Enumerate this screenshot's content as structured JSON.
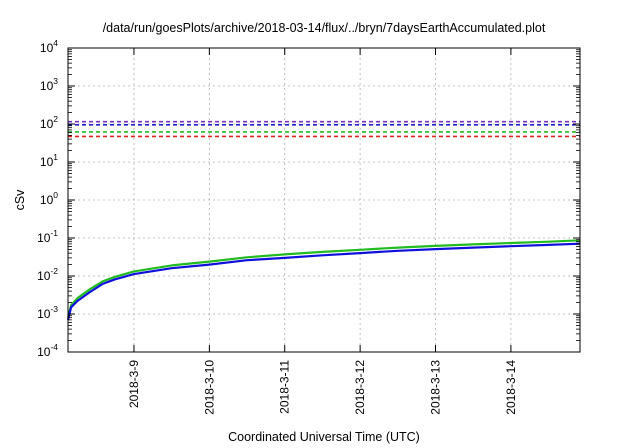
{
  "chart_data": {
    "type": "line",
    "title": "/data/run/goesPlots/archive/2018-03-14/flux/../bryn/7daysEarthAccumulated.plot",
    "xlabel": "Coordinated Universal Time (UTC)",
    "ylabel": "cSv",
    "yscale": "log",
    "ylim": [
      0.0001,
      10000
    ],
    "xlim": [
      "2018-03-08 03:00",
      "2018-03-14 22:00"
    ],
    "grid": true,
    "x_ticks": [
      "2018-3-9",
      "2018-3-10",
      "2018-3-11",
      "2018-3-12",
      "2018-3-13",
      "2018-3-14"
    ],
    "y_ticks": [
      {
        "base": "10",
        "exp": "-4",
        "value": 0.0001
      },
      {
        "base": "10",
        "exp": "-3",
        "value": 0.001
      },
      {
        "base": "10",
        "exp": "-2",
        "value": 0.01
      },
      {
        "base": "10",
        "exp": "-1",
        "value": 0.1
      },
      {
        "base": "10",
        "exp": "0",
        "value": 1
      },
      {
        "base": "10",
        "exp": "1",
        "value": 10
      },
      {
        "base": "10",
        "exp": "2",
        "value": 100
      },
      {
        "base": "10",
        "exp": "3",
        "value": 1000
      },
      {
        "base": "10",
        "exp": "4",
        "value": 10000
      }
    ],
    "threshold_lines": [
      {
        "color": "#7b2fbf",
        "value": 115,
        "style": "dashed"
      },
      {
        "color": "#2020cc",
        "value": 95,
        "style": "dashed"
      },
      {
        "color": "#22bb22",
        "value": 62,
        "style": "dashed"
      },
      {
        "color": "#dd2222",
        "value": 47,
        "style": "dashed"
      }
    ],
    "series": [
      {
        "color": "#22bb22",
        "x": [
          "2018-03-08 03:00",
          "2018-03-08 04:00",
          "2018-03-08 06:00",
          "2018-03-08 10:00",
          "2018-03-08 14:00",
          "2018-03-08 18:00",
          "2018-03-09 00:00",
          "2018-03-09 12:00",
          "2018-03-10 00:00",
          "2018-03-10 12:00",
          "2018-03-11 00:00",
          "2018-03-11 12:00",
          "2018-03-12 00:00",
          "2018-03-12 12:00",
          "2018-03-13 00:00",
          "2018-03-13 12:00",
          "2018-03-14 00:00",
          "2018-03-14 12:00",
          "2018-03-14 22:00"
        ],
        "values": [
          0.0008,
          0.0017,
          0.0026,
          0.0045,
          0.0072,
          0.0095,
          0.0132,
          0.019,
          0.024,
          0.031,
          0.037,
          0.043,
          0.049,
          0.056,
          0.062,
          0.068,
          0.074,
          0.08,
          0.087
        ]
      },
      {
        "color": "#1010dd",
        "x": [
          "2018-03-08 03:00",
          "2018-03-08 04:00",
          "2018-03-08 06:00",
          "2018-03-08 10:00",
          "2018-03-08 14:00",
          "2018-03-08 18:00",
          "2018-03-09 00:00",
          "2018-03-09 12:00",
          "2018-03-10 00:00",
          "2018-03-10 12:00",
          "2018-03-11 00:00",
          "2018-03-11 12:00",
          "2018-03-12 00:00",
          "2018-03-12 12:00",
          "2018-03-13 00:00",
          "2018-03-13 12:00",
          "2018-03-14 00:00",
          "2018-03-14 12:00",
          "2018-03-14 22:00"
        ],
        "values": [
          0.0007,
          0.0015,
          0.0022,
          0.0038,
          0.0062,
          0.0082,
          0.0112,
          0.016,
          0.02,
          0.026,
          0.03,
          0.035,
          0.04,
          0.046,
          0.051,
          0.056,
          0.061,
          0.066,
          0.071
        ]
      }
    ]
  }
}
